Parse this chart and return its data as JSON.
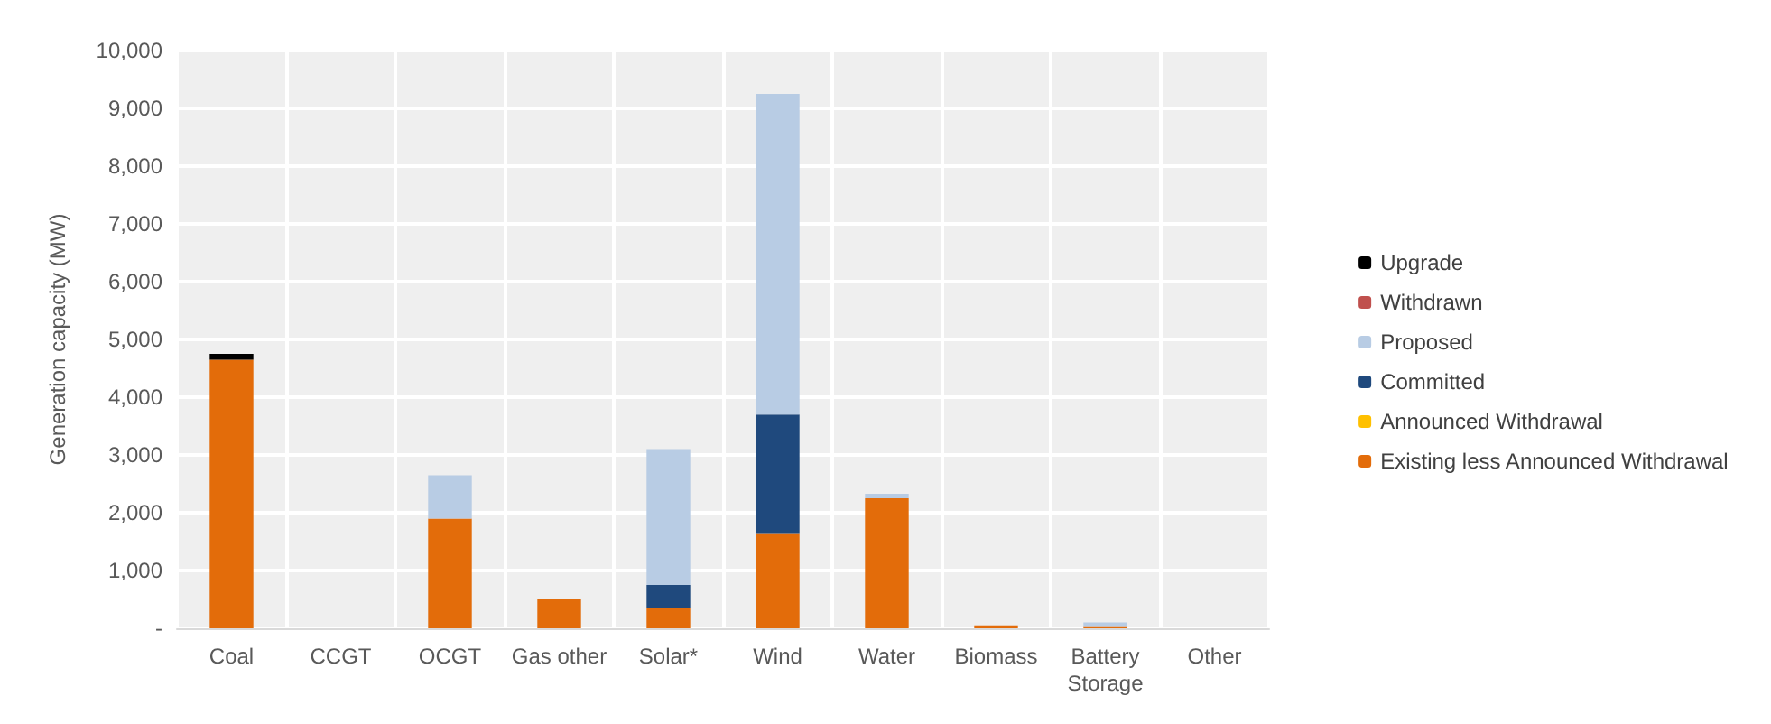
{
  "chart_data": {
    "type": "bar",
    "stacked": true,
    "ylabel": "Generation capacity (MW)",
    "categories": [
      "Coal",
      "CCGT",
      "OCGT",
      "Gas other",
      "Solar*",
      "Wind",
      "Water",
      "Biomass",
      "Battery\nStorage",
      "Other"
    ],
    "series": [
      {
        "name": "Existing less Announced Withdrawal",
        "color": "#e36c0a",
        "values": [
          4650,
          0,
          1900,
          500,
          350,
          1650,
          2250,
          50,
          40,
          0
        ]
      },
      {
        "name": "Announced Withdrawal",
        "color": "#ffc000",
        "values": [
          0,
          0,
          0,
          0,
          0,
          0,
          0,
          0,
          0,
          0
        ]
      },
      {
        "name": "Committed",
        "color": "#1f497d",
        "values": [
          0,
          0,
          0,
          0,
          400,
          2050,
          0,
          0,
          0,
          0
        ]
      },
      {
        "name": "Proposed",
        "color": "#b8cce4",
        "values": [
          0,
          0,
          750,
          0,
          2350,
          5550,
          80,
          0,
          60,
          0
        ]
      },
      {
        "name": "Withdrawn",
        "color": "#c0504d",
        "values": [
          0,
          0,
          0,
          0,
          0,
          0,
          0,
          0,
          0,
          0
        ]
      },
      {
        "name": "Upgrade",
        "color": "#000000",
        "values": [
          100,
          0,
          0,
          0,
          0,
          0,
          0,
          0,
          0,
          0
        ]
      }
    ],
    "ylim": [
      0,
      10000
    ],
    "yticks": [
      {
        "value": 0,
        "label": "-"
      },
      {
        "value": 1000,
        "label": "1,000"
      },
      {
        "value": 2000,
        "label": "2,000"
      },
      {
        "value": 3000,
        "label": "3,000"
      },
      {
        "value": 4000,
        "label": "4,000"
      },
      {
        "value": 5000,
        "label": "5,000"
      },
      {
        "value": 6000,
        "label": "6,000"
      },
      {
        "value": 7000,
        "label": "7,000"
      },
      {
        "value": 8000,
        "label": "8,000"
      },
      {
        "value": 9000,
        "label": "9,000"
      },
      {
        "value": 10000,
        "label": "10,000"
      }
    ],
    "grid": true,
    "legend": "right"
  }
}
